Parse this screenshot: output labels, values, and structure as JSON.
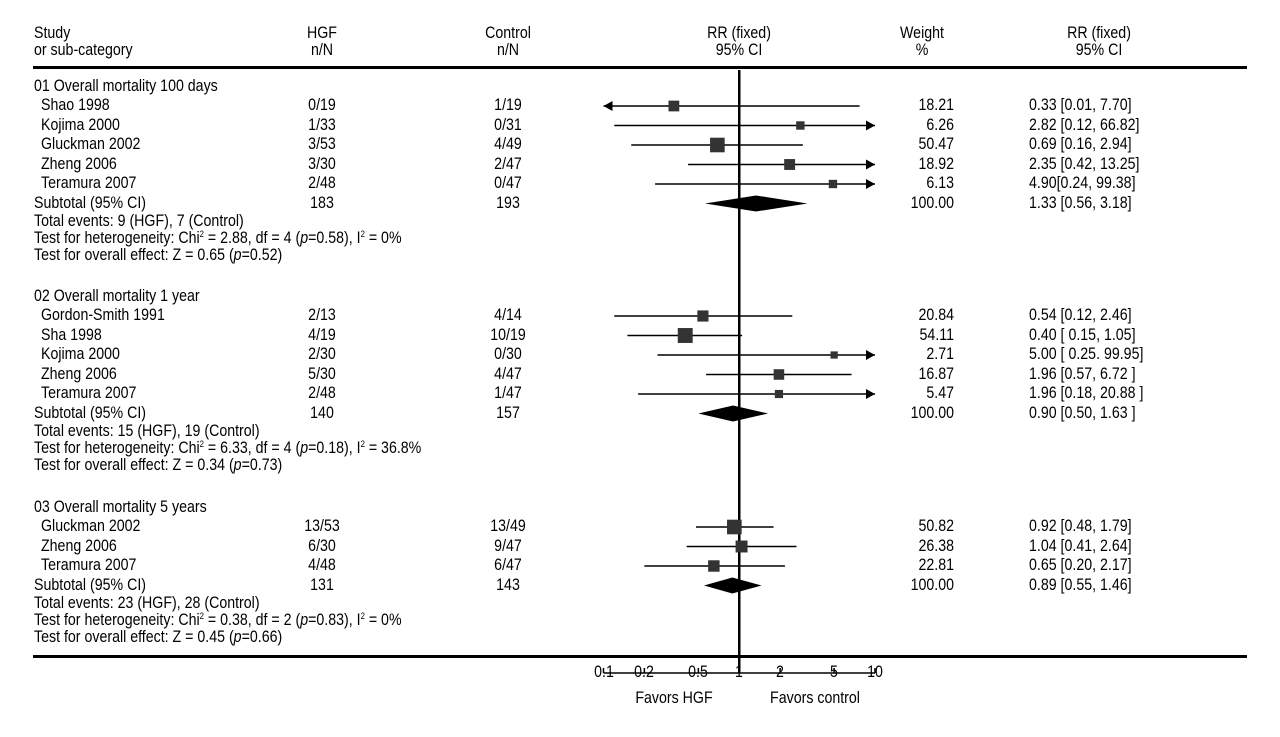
{
  "header": {
    "study": "Study",
    "subcat": "or sub-category",
    "hgf": "HGF",
    "hgf_nn": "n/N",
    "control": "Control",
    "control_nn": "n/N",
    "rr": "RR (fixed)",
    "rr_ci": "95% CI",
    "weight": "Weight",
    "weight_pct": "%",
    "rr2": "RR (fixed)",
    "rr2_ci": "95% CI"
  },
  "chart_data": {
    "type": "forest",
    "scale": "log",
    "xlim": [
      0.1,
      10
    ],
    "ticks": [
      "0.1",
      "0.2",
      "0.5",
      "1",
      "2",
      "5",
      "10"
    ],
    "favors_left": "Favors HGF",
    "favors_right": "Favors control",
    "groups": [
      {
        "title": "01 Overall mortality 100 days",
        "studies": [
          {
            "name": "Shao 1998",
            "hgf": "0/19",
            "control": "1/19",
            "weight": "18.21",
            "rr_text": "0.33 [0.01, 7.70]",
            "rr": 0.33,
            "lo": 0.01,
            "hi": 7.7
          },
          {
            "name": "Kojima 2000",
            "hgf": "1/33",
            "control": "0/31",
            "weight": "6.26",
            "rr_text": "2.82 [0.12, 66.82]",
            "rr": 2.82,
            "lo": 0.12,
            "hi": 66.82
          },
          {
            "name": "Gluckman 2002",
            "hgf": "3/53",
            "control": "4/49",
            "weight": "50.47",
            "rr_text": "0.69 [0.16, 2.94]",
            "rr": 0.69,
            "lo": 0.16,
            "hi": 2.94
          },
          {
            "name": "Zheng 2006",
            "hgf": "3/30",
            "control": "2/47",
            "weight": "18.92",
            "rr_text": "2.35 [0.42, 13.25]",
            "rr": 2.35,
            "lo": 0.42,
            "hi": 13.25
          },
          {
            "name": "Teramura 2007",
            "hgf": "2/48",
            "control": "0/47",
            "weight": "6.13",
            "rr_text": "4.90[0.24, 99.38]",
            "rr": 4.9,
            "lo": 0.24,
            "hi": 99.38
          }
        ],
        "subtotal": {
          "label": "Subtotal (95% CI)",
          "hgf": "183",
          "control": "193",
          "weight": "100.00",
          "rr_text": "1.33 [0.56, 3.18]",
          "rr": 1.33,
          "lo": 0.56,
          "hi": 3.18
        },
        "total_events": "Total events: 9 (HGF), 7 (Control)",
        "het_pre": "Test for heterogeneity: Chi",
        "het_sup": "2",
        "het_mid": " = 2.88, df = 4 (",
        "het_p": "p",
        "het_post": "=0.58), I",
        "het_i2sup": "2",
        "het_end": " = 0%",
        "eff_pre": "Test for overall effect: Z = 0.65 (",
        "eff_p": "p",
        "eff_post": "=0.52)"
      },
      {
        "title": "02 Overall mortality 1 year",
        "studies": [
          {
            "name": "Gordon-Smith 1991",
            "hgf": "2/13",
            "control": "4/14",
            "weight": "20.84",
            "rr_text": "0.54 [0.12, 2.46]",
            "rr": 0.54,
            "lo": 0.12,
            "hi": 2.46
          },
          {
            "name": "Sha 1998",
            "hgf": "4/19",
            "control": "10/19",
            "weight": "54.11",
            "rr_text": "0.40 [ 0.15, 1.05]",
            "rr": 0.4,
            "lo": 0.15,
            "hi": 1.05
          },
          {
            "name": "Kojima 2000",
            "hgf": "2/30",
            "control": "0/30",
            "weight": "2.71",
            "rr_text": "5.00 [ 0.25. 99.95]",
            "rr": 5.0,
            "lo": 0.25,
            "hi": 99.95
          },
          {
            "name": "Zheng 2006",
            "hgf": "5/30",
            "control": "4/47",
            "weight": "16.87",
            "rr_text": "1.96 [0.57, 6.72 ]",
            "rr": 1.96,
            "lo": 0.57,
            "hi": 6.72
          },
          {
            "name": "Teramura 2007",
            "hgf": "2/48",
            "control": "1/47",
            "weight": "5.47",
            "rr_text": "1.96 [0.18, 20.88 ]",
            "rr": 1.96,
            "lo": 0.18,
            "hi": 20.88
          }
        ],
        "subtotal": {
          "label": "Subtotal (95% CI)",
          "hgf": "140",
          "control": "157",
          "weight": "100.00",
          "rr_text": "0.90 [0.50, 1.63 ]",
          "rr": 0.9,
          "lo": 0.5,
          "hi": 1.63
        },
        "total_events": "Total events: 15 (HGF), 19 (Control)",
        "het_pre": "Test for heterogeneity: Chi",
        "het_sup": "2",
        "het_mid": " = 6.33, df = 4 (",
        "het_p": "p",
        "het_post": "=0.18), I",
        "het_i2sup": "2",
        "het_end": " = 36.8%",
        "eff_pre": "Test for overall effect: Z = 0.34 (",
        "eff_p": "p",
        "eff_post": "=0.73)"
      },
      {
        "title": "03 Overall mortality 5 years",
        "studies": [
          {
            "name": "Gluckman 2002",
            "hgf": "13/53",
            "control": "13/49",
            "weight": "50.82",
            "rr_text": "0.92 [0.48, 1.79]",
            "rr": 0.92,
            "lo": 0.48,
            "hi": 1.79
          },
          {
            "name": "Zheng 2006",
            "hgf": "6/30",
            "control": "9/47",
            "weight": "26.38",
            "rr_text": "1.04 [0.41, 2.64]",
            "rr": 1.04,
            "lo": 0.41,
            "hi": 2.64
          },
          {
            "name": "Teramura 2007",
            "hgf": "4/48",
            "control": "6/47",
            "weight": "22.81",
            "rr_text": "0.65 [0.20, 2.17]",
            "rr": 0.65,
            "lo": 0.2,
            "hi": 2.17
          }
        ],
        "subtotal": {
          "label": "Subtotal (95% CI)",
          "hgf": "131",
          "control": "143",
          "weight": "100.00",
          "rr_text": "0.89 [0.55, 1.46]",
          "rr": 0.89,
          "lo": 0.55,
          "hi": 1.46
        },
        "total_events": "Total events: 23 (HGF), 28 (Control)",
        "het_pre": "Test for heterogeneity: Chi",
        "het_sup": "2",
        "het_mid": " = 0.38, df = 2 (",
        "het_p": "p",
        "het_post": "=0.83), I",
        "het_i2sup": "2",
        "het_end": " = 0%",
        "eff_pre": "Test for overall effect: Z = 0.45 (",
        "eff_p": "p",
        "eff_post": "=0.66)"
      }
    ]
  }
}
